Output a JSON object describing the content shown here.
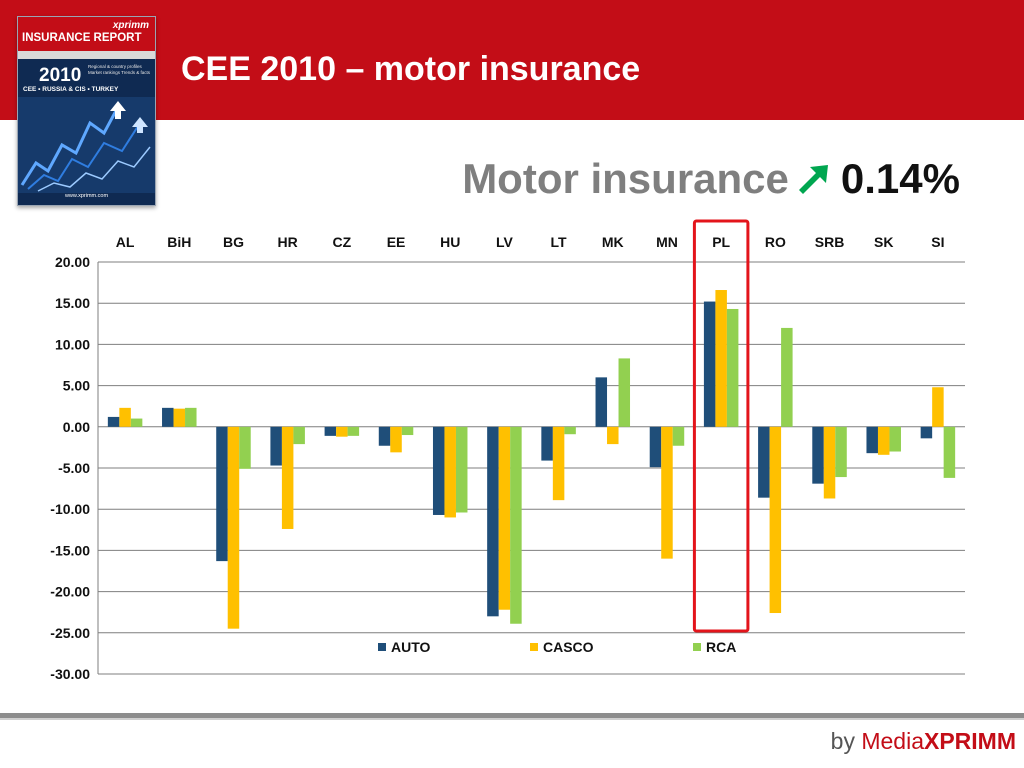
{
  "title": "CEE 2010 – motor insurance",
  "cover": {
    "brand": "xprimm",
    "title": "INSURANCE REPORT",
    "year": "2010",
    "regions": "CEE • RUSSIA & CIS • TURKEY",
    "blurb": "Regional & country profiles Market rankings Trends & facts",
    "url": "www.xprimm.com"
  },
  "headline": {
    "label": "Motor insurance",
    "trend_icon": "arrow-up-right-icon",
    "value": "0.14%"
  },
  "credit": {
    "by": "by",
    "media": "Media",
    "brand": "XPRIMM"
  },
  "colors": {
    "header": "#c30d17",
    "AUTO": "#1f4e79",
    "CASCO": "#ffc000",
    "RCA": "#92d050",
    "highlight": "#e3141b",
    "trend": "#00a650"
  },
  "chart_data": {
    "type": "bar",
    "categories": [
      "AL",
      "BiH",
      "BG",
      "HR",
      "CZ",
      "EE",
      "HU",
      "LV",
      "LT",
      "MK",
      "MN",
      "PL",
      "RO",
      "SRB",
      "SK",
      "SI"
    ],
    "series": [
      {
        "name": "AUTO",
        "values": [
          1.2,
          2.3,
          -16.3,
          -4.7,
          -1.1,
          -2.3,
          -10.7,
          -23.0,
          -4.1,
          6.0,
          -4.9,
          15.2,
          -8.6,
          -6.9,
          -3.2,
          -1.4
        ]
      },
      {
        "name": "CASCO",
        "values": [
          2.3,
          2.2,
          -24.5,
          -12.4,
          -1.2,
          -3.1,
          -11.0,
          -22.2,
          -8.9,
          -2.1,
          -16.0,
          16.6,
          -22.6,
          -8.7,
          -3.4,
          4.8
        ]
      },
      {
        "name": "RCA",
        "values": [
          1.0,
          2.3,
          -5.1,
          -2.1,
          -1.1,
          -1.0,
          -10.4,
          -23.9,
          -0.9,
          8.3,
          -2.3,
          14.3,
          12.0,
          -6.1,
          -3.0,
          -6.2
        ]
      }
    ],
    "ylim": [
      -30,
      20
    ],
    "ytick_step": 5,
    "ytick_labels": [
      "20.00",
      "15.00",
      "10.00",
      "5.00",
      "0.00",
      "-5.00",
      "-10.00",
      "-15.00",
      "-20.00",
      "-25.00",
      "-30.00"
    ],
    "grid": true,
    "legend_position": "bottom",
    "category_labels_position": "top",
    "highlighted_category": "PL"
  }
}
